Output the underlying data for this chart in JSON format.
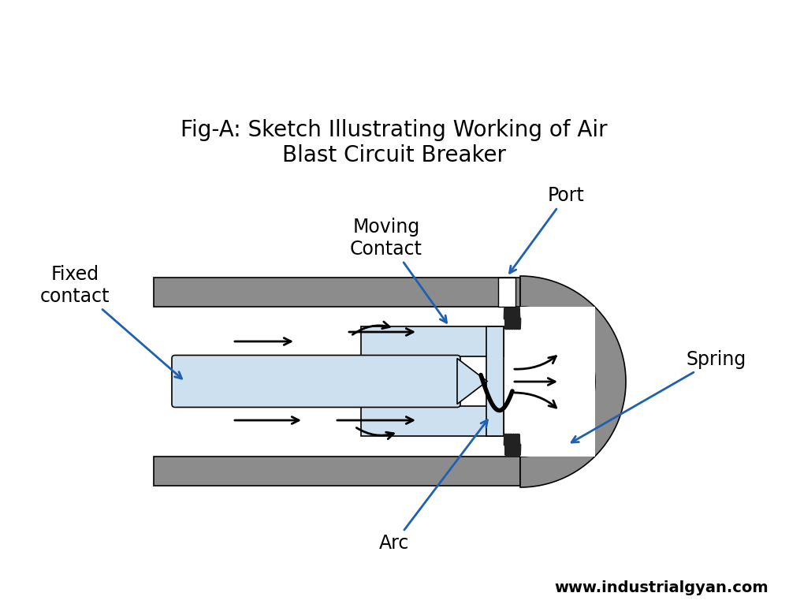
{
  "title": "Fig-A: Sketch Illustrating Working of Air\nBlast Circuit Breaker",
  "watermark": "www.industrialgyan.com",
  "bg_color": "#ffffff",
  "gray_color": "#8c8c8c",
  "blue_light": "#cce0f0",
  "blue_line": "#2060b0",
  "black": "#000000",
  "white": "#ffffff",
  "label_arc": "Arc",
  "label_spring": "Spring",
  "label_port": "Port",
  "label_moving": "Moving\nContact",
  "label_fixed": "Fixed\ncontact",
  "title_fontsize": 20,
  "label_fontsize": 17,
  "watermark_fontsize": 14
}
